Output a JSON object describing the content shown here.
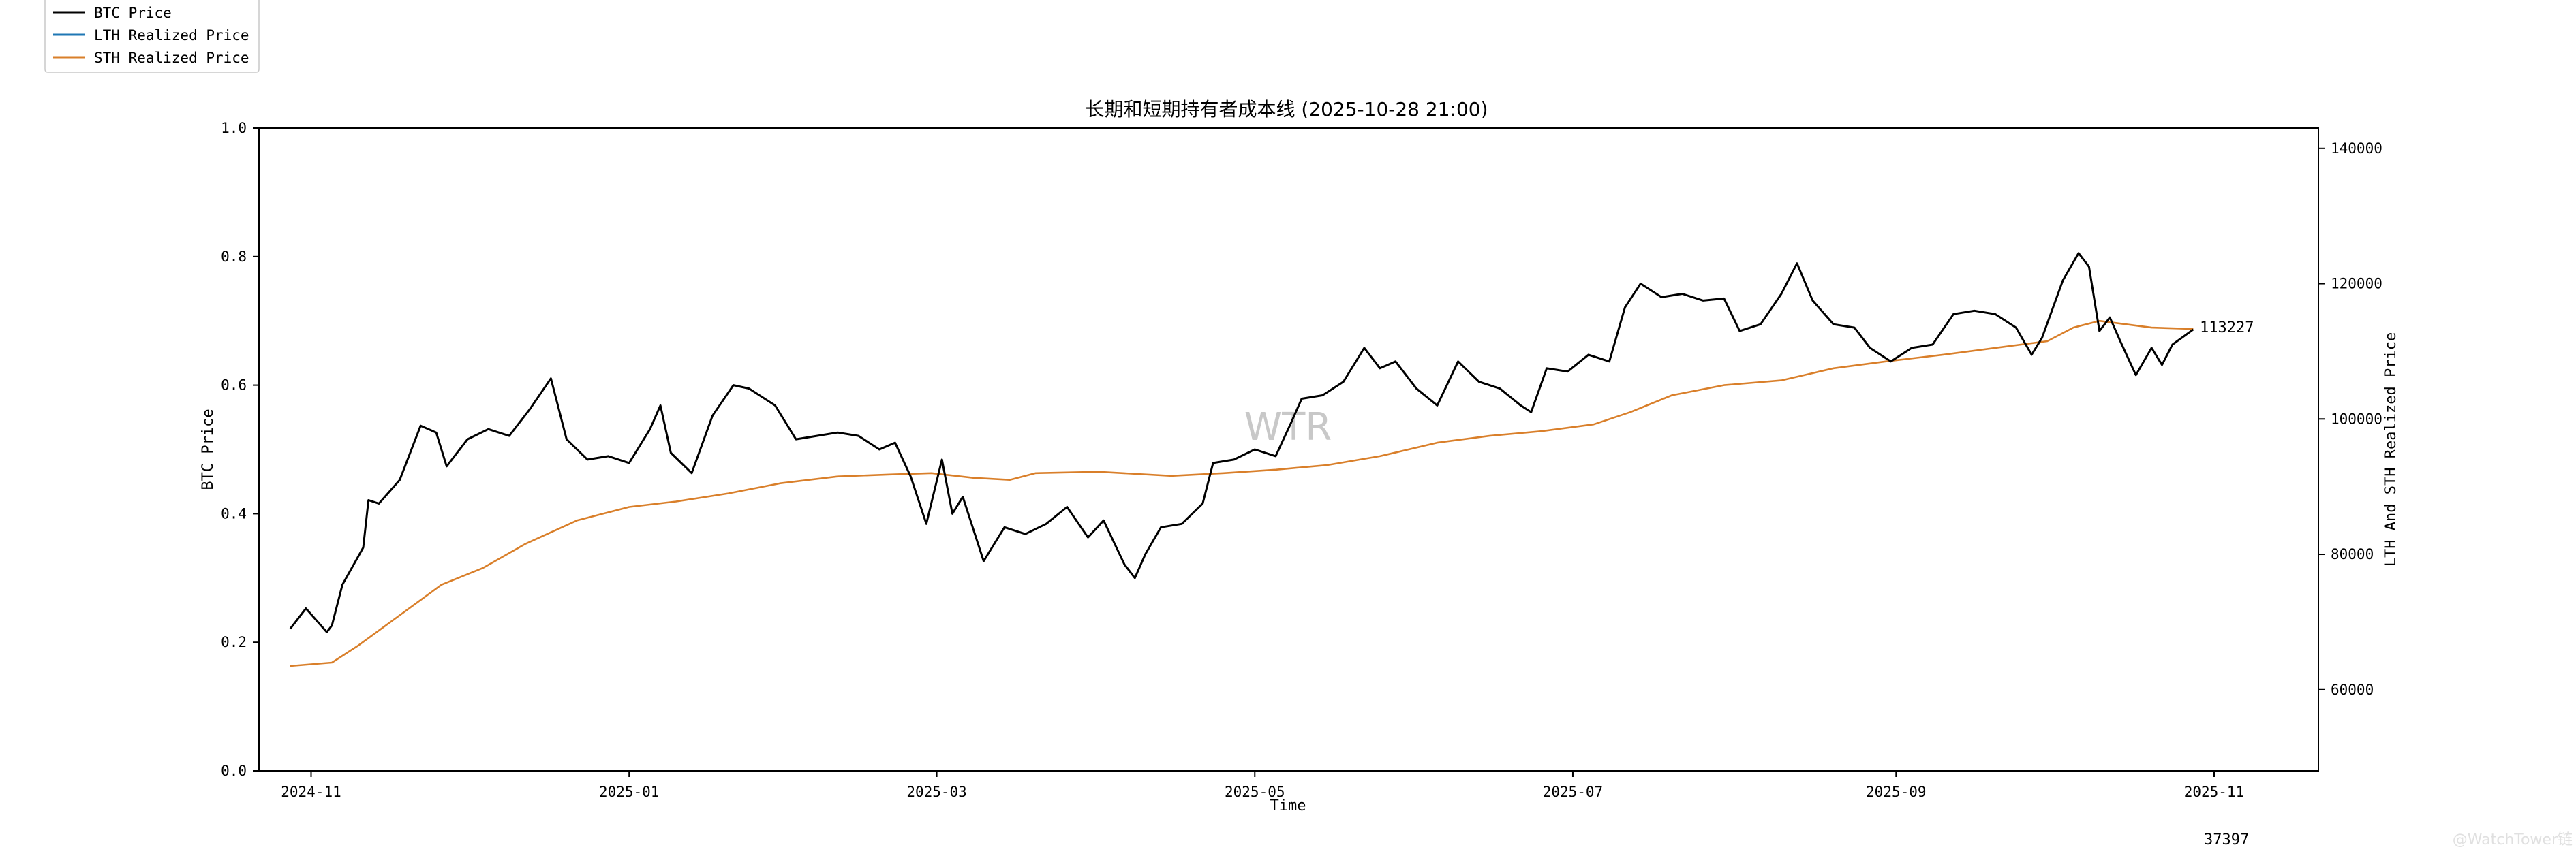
{
  "chart_data": {
    "type": "line",
    "title": "长期和短期持有者成本线 (2025-10-28 21:00)",
    "xlabel": "Time",
    "ylabel_left": "BTC Price",
    "ylabel_right": "LTH And STH Realized Price",
    "x_ticks": [
      "2024-11",
      "2025-01",
      "2025-03",
      "2025-05",
      "2025-07",
      "2025-09",
      "2025-11"
    ],
    "y_left_ticks": [
      "0.0",
      "0.2",
      "0.4",
      "0.6",
      "0.8",
      "1.0"
    ],
    "y_right_ticks": [
      "60000",
      "80000",
      "100000",
      "120000",
      "140000"
    ],
    "xlim": [
      "2024-10-22",
      "2025-11-21"
    ],
    "ylim_right": [
      48000,
      143000
    ],
    "grid": false,
    "legend_position": "top-left",
    "last_value_label": "113227",
    "footer_number": "37397",
    "watermark": "WTR",
    "credit": "@WatchTower链",
    "series": [
      {
        "name": "BTC Price",
        "color": "#000000",
        "points": [
          [
            "2024-10-28",
            69000
          ],
          [
            "2024-10-31",
            72000
          ],
          [
            "2024-11-04",
            68500
          ],
          [
            "2024-11-05",
            69500
          ],
          [
            "2024-11-07",
            75500
          ],
          [
            "2024-11-11",
            81000
          ],
          [
            "2024-11-12",
            88000
          ],
          [
            "2024-11-14",
            87500
          ],
          [
            "2024-11-18",
            91000
          ],
          [
            "2024-11-22",
            99000
          ],
          [
            "2024-11-25",
            98000
          ],
          [
            "2024-11-27",
            93000
          ],
          [
            "2024-12-01",
            97000
          ],
          [
            "2024-12-05",
            98500
          ],
          [
            "2024-12-09",
            97500
          ],
          [
            "2024-12-13",
            101500
          ],
          [
            "2024-12-17",
            106000
          ],
          [
            "2024-12-20",
            97000
          ],
          [
            "2024-12-24",
            94000
          ],
          [
            "2024-12-28",
            94500
          ],
          [
            "2025-01-01",
            93500
          ],
          [
            "2025-01-05",
            98500
          ],
          [
            "2025-01-07",
            102000
          ],
          [
            "2025-01-09",
            95000
          ],
          [
            "2025-01-13",
            92000
          ],
          [
            "2025-01-17",
            100500
          ],
          [
            "2025-01-21",
            105000
          ],
          [
            "2025-01-24",
            104500
          ],
          [
            "2025-01-29",
            102000
          ],
          [
            "2025-02-02",
            97000
          ],
          [
            "2025-02-06",
            97500
          ],
          [
            "2025-02-10",
            98000
          ],
          [
            "2025-02-14",
            97500
          ],
          [
            "2025-02-18",
            95500
          ],
          [
            "2025-02-21",
            96500
          ],
          [
            "2025-02-24",
            91500
          ],
          [
            "2025-02-27",
            84500
          ],
          [
            "2025-03-02",
            94000
          ],
          [
            "2025-03-04",
            86000
          ],
          [
            "2025-03-06",
            88500
          ],
          [
            "2025-03-10",
            79000
          ],
          [
            "2025-03-14",
            84000
          ],
          [
            "2025-03-18",
            83000
          ],
          [
            "2025-03-22",
            84500
          ],
          [
            "2025-03-26",
            87000
          ],
          [
            "2025-03-30",
            82500
          ],
          [
            "2025-04-02",
            85000
          ],
          [
            "2025-04-06",
            78500
          ],
          [
            "2025-04-08",
            76500
          ],
          [
            "2025-04-10",
            80000
          ],
          [
            "2025-04-13",
            84000
          ],
          [
            "2025-04-17",
            84500
          ],
          [
            "2025-04-21",
            87500
          ],
          [
            "2025-04-23",
            93500
          ],
          [
            "2025-04-27",
            94000
          ],
          [
            "2025-05-01",
            95500
          ],
          [
            "2025-05-05",
            94500
          ],
          [
            "2025-05-08",
            99500
          ],
          [
            "2025-05-10",
            103000
          ],
          [
            "2025-05-14",
            103500
          ],
          [
            "2025-05-18",
            105500
          ],
          [
            "2025-05-22",
            110500
          ],
          [
            "2025-05-25",
            107500
          ],
          [
            "2025-05-28",
            108500
          ],
          [
            "2025-06-01",
            104500
          ],
          [
            "2025-06-05",
            102000
          ],
          [
            "2025-06-09",
            108500
          ],
          [
            "2025-06-13",
            105500
          ],
          [
            "2025-06-17",
            104500
          ],
          [
            "2025-06-21",
            102000
          ],
          [
            "2025-06-23",
            101000
          ],
          [
            "2025-06-26",
            107500
          ],
          [
            "2025-06-30",
            107000
          ],
          [
            "2025-07-04",
            109500
          ],
          [
            "2025-07-08",
            108500
          ],
          [
            "2025-07-11",
            116500
          ],
          [
            "2025-07-14",
            120000
          ],
          [
            "2025-07-18",
            118000
          ],
          [
            "2025-07-22",
            118500
          ],
          [
            "2025-07-26",
            117500
          ],
          [
            "2025-07-30",
            117800
          ],
          [
            "2025-08-02",
            113000
          ],
          [
            "2025-08-06",
            114000
          ],
          [
            "2025-08-10",
            118500
          ],
          [
            "2025-08-13",
            123000
          ],
          [
            "2025-08-16",
            117500
          ],
          [
            "2025-08-20",
            114000
          ],
          [
            "2025-08-24",
            113500
          ],
          [
            "2025-08-27",
            110500
          ],
          [
            "2025-08-31",
            108500
          ],
          [
            "2025-09-04",
            110500
          ],
          [
            "2025-09-08",
            111000
          ],
          [
            "2025-09-12",
            115500
          ],
          [
            "2025-09-16",
            116000
          ],
          [
            "2025-09-20",
            115500
          ],
          [
            "2025-09-24",
            113500
          ],
          [
            "2025-09-27",
            109500
          ],
          [
            "2025-09-29",
            112000
          ],
          [
            "2025-10-03",
            120500
          ],
          [
            "2025-10-06",
            124500
          ],
          [
            "2025-10-08",
            122500
          ],
          [
            "2025-10-10",
            113000
          ],
          [
            "2025-10-12",
            115000
          ],
          [
            "2025-10-14",
            111500
          ],
          [
            "2025-10-17",
            106500
          ],
          [
            "2025-10-20",
            110500
          ],
          [
            "2025-10-22",
            108000
          ],
          [
            "2025-10-24",
            111000
          ],
          [
            "2025-10-28",
            113227
          ]
        ]
      },
      {
        "name": "LTH Realized Price",
        "color": "#1f77b4",
        "points": []
      },
      {
        "name": "STH Realized Price",
        "color": "#d97f2a",
        "points": [
          [
            "2024-10-28",
            63500
          ],
          [
            "2024-11-05",
            64000
          ],
          [
            "2024-11-10",
            66500
          ],
          [
            "2024-11-18",
            71000
          ],
          [
            "2024-11-26",
            75500
          ],
          [
            "2024-12-04",
            78000
          ],
          [
            "2024-12-12",
            81500
          ],
          [
            "2024-12-22",
            85000
          ],
          [
            "2025-01-01",
            87000
          ],
          [
            "2025-01-10",
            87800
          ],
          [
            "2025-01-20",
            89000
          ],
          [
            "2025-01-30",
            90500
          ],
          [
            "2025-02-10",
            91500
          ],
          [
            "2025-02-20",
            91800
          ],
          [
            "2025-02-28",
            92000
          ],
          [
            "2025-03-08",
            91300
          ],
          [
            "2025-03-15",
            91000
          ],
          [
            "2025-03-20",
            92000
          ],
          [
            "2025-04-01",
            92200
          ],
          [
            "2025-04-15",
            91600
          ],
          [
            "2025-04-25",
            92000
          ],
          [
            "2025-05-05",
            92500
          ],
          [
            "2025-05-15",
            93200
          ],
          [
            "2025-05-25",
            94500
          ],
          [
            "2025-06-05",
            96500
          ],
          [
            "2025-06-15",
            97500
          ],
          [
            "2025-06-25",
            98200
          ],
          [
            "2025-07-05",
            99200
          ],
          [
            "2025-07-12",
            101000
          ],
          [
            "2025-07-20",
            103500
          ],
          [
            "2025-07-30",
            105000
          ],
          [
            "2025-08-10",
            105700
          ],
          [
            "2025-08-20",
            107500
          ],
          [
            "2025-08-30",
            108500
          ],
          [
            "2025-09-10",
            109500
          ],
          [
            "2025-09-20",
            110500
          ],
          [
            "2025-09-30",
            111500
          ],
          [
            "2025-10-05",
            113500
          ],
          [
            "2025-10-10",
            114500
          ],
          [
            "2025-10-20",
            113500
          ],
          [
            "2025-10-28",
            113300
          ]
        ]
      }
    ]
  }
}
